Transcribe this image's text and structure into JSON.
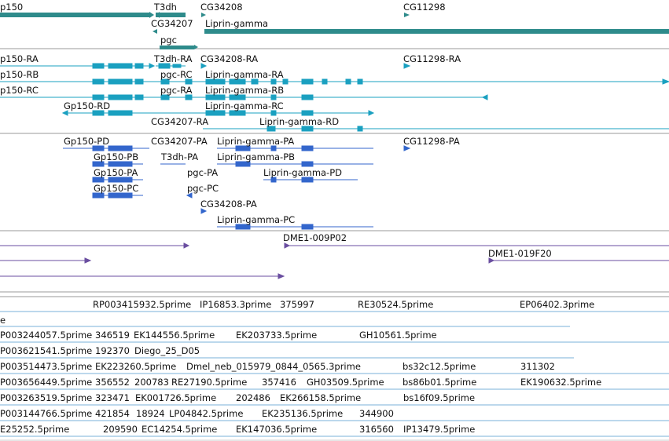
{
  "colors": {
    "gene": "#2e8b8b",
    "transcript_ra": "#1aa0c0",
    "transcript_pa": "#3366cc",
    "clone": "#6a4ea0",
    "est": "#7ab0d8",
    "divider": "#999999",
    "divider_light": "#cccccc"
  },
  "gene_track": {
    "labels": [
      "p150",
      "T3dh",
      "CG34208",
      "CG11298",
      "CG34207",
      "Liprin-gamma",
      "pgc"
    ]
  },
  "transcript_ra_track": {
    "labels": [
      "p150-RA",
      "T3dh-RA",
      "CG34208-RA",
      "CG11298-RA",
      "p150-RB",
      "pgc-RC",
      "Liprin-gamma-RA",
      "p150-RC",
      "pgc-RA",
      "Liprin-gamma-RB",
      "Gp150-RD",
      "Liprin-gamma-RC",
      "CG34207-RA",
      "Liprin-gamma-RD"
    ]
  },
  "transcript_pa_track": {
    "labels": [
      "Gp150-PD",
      "CG34207-PA",
      "Liprin-gamma-PA",
      "CG11298-PA",
      "Gp150-PB",
      "T3dh-PA",
      "Liprin-gamma-PB",
      "Gp150-PA",
      "pgc-PA",
      "Liprin-gamma-PD",
      "Gp150-PC",
      "pgc-PC",
      "CG34208-PA",
      "Liprin-gamma-PC"
    ]
  },
  "clone_track": {
    "labels": [
      "DME1-009P02",
      "DME1-019F20"
    ]
  },
  "est_track": {
    "labels": [
      "RP003415932.5prime",
      "IP16853.3prime",
      "375997",
      "RE30524.5prime",
      "EP06402.3prime",
      "e",
      "P003244057.5prime",
      "346519",
      "EK144556.5prime",
      "EK203733.5prime",
      "GH10561.5prime",
      "P003621541.5prime",
      "192370",
      "Diego_25_D05",
      "P003514473.5prime",
      "EK223260.5prime",
      "Dmel_neb_015979_0844_0565.3prime",
      "bs32c12.5prime",
      "311302",
      "P003656449.5prime",
      "356552",
      "200783",
      "RE27190.5prime",
      "357416",
      "GH03509.5prime",
      "bs86b01.5prime",
      "EK190632.5prime",
      "P003263519.5prime",
      "323471",
      "EK001726.5prime",
      "202486",
      "EK266158.5prime",
      "bs16f09.5prime",
      "P003144766.5prime",
      "421854",
      "18924",
      "LP04842.5prime",
      "EK235136.5prime",
      "344900",
      "E25252.5prime",
      "209590",
      "EC14254.5prime",
      "EK147036.5prime",
      "316560",
      "IP13479.5prime"
    ]
  }
}
